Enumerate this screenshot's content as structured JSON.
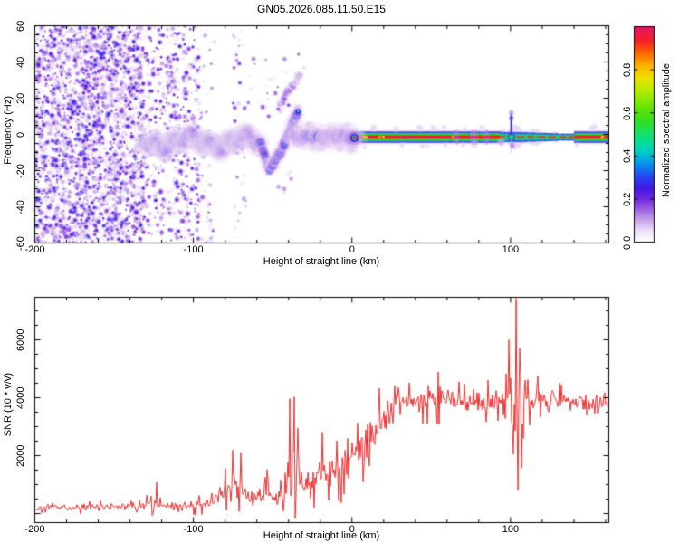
{
  "title": "GN05.2026.085.11.50.E15",
  "chart_data": [
    {
      "type": "heatmap",
      "title": "GN05.2026.085.11.50.E15",
      "xlabel": "Height of straight line (km)",
      "ylabel": "Frequency (Hz)",
      "xlim": [
        -200,
        162
      ],
      "ylim": [
        -60,
        60
      ],
      "xticks": {
        "values": [
          -200,
          -100,
          0,
          100
        ],
        "labels": [
          "-200",
          "-100",
          "0",
          "100"
        ]
      },
      "yticks": {
        "values": [
          -60,
          -40,
          -20,
          0,
          20,
          40,
          60
        ],
        "labels": [
          "-60",
          "-40",
          "-20",
          "0",
          "20",
          "40",
          "60"
        ]
      },
      "x_minor_step": 20,
      "y_minor_step": 5,
      "grid": false,
      "colorbar": {
        "label": "Normalized spectral amplitude",
        "range": [
          0,
          1
        ],
        "ticks": {
          "values": [
            0,
            0.2,
            0.4,
            0.6,
            0.8
          ],
          "labels": [
            "0.0",
            "0.2",
            "0.4",
            "0.6",
            "0.8"
          ]
        },
        "colormap": [
          [
            0,
            "#ffffff"
          ],
          [
            0.05,
            "#ecdff7"
          ],
          [
            0.1,
            "#c9a3ea"
          ],
          [
            0.15,
            "#9c5fe3"
          ],
          [
            0.2,
            "#6e28dd"
          ],
          [
            0.25,
            "#4418e6"
          ],
          [
            0.3,
            "#2743f2"
          ],
          [
            0.35,
            "#0c84f0"
          ],
          [
            0.4,
            "#00c0d8"
          ],
          [
            0.45,
            "#00dca4"
          ],
          [
            0.5,
            "#16e06a"
          ],
          [
            0.55,
            "#2cdd2c"
          ],
          [
            0.62,
            "#63e400"
          ],
          [
            0.7,
            "#b4ec00"
          ],
          [
            0.76,
            "#f0e000"
          ],
          [
            0.82,
            "#ffb000"
          ],
          [
            0.87,
            "#ff6c00"
          ],
          [
            0.93,
            "#f52222"
          ],
          [
            1,
            "#e6156e"
          ]
        ]
      },
      "features": {
        "noise_regions": [
          {
            "x": [
              -200,
              -133
            ],
            "hz": [
              -60,
              60
            ],
            "density": "high",
            "amp": [
              0.02,
              0.3
            ]
          },
          {
            "x": [
              -133,
              -96
            ],
            "hz": [
              -60,
              60
            ],
            "density": "medium",
            "amp": [
              0.02,
              0.26
            ]
          },
          {
            "x": [
              -96,
              -86
            ],
            "hz": [
              -60,
              60
            ],
            "density": "low",
            "amp": [
              0.02,
              0.18
            ]
          },
          {
            "x": [
              -76,
              -67
            ],
            "hz": [
              -58,
              58
            ],
            "density": "low",
            "amp": [
              0.02,
              0.2
            ]
          },
          {
            "x": [
              -67,
              -30
            ],
            "hz": [
              10,
              46
            ],
            "density": "sparse",
            "amp": [
              0.02,
              0.18
            ]
          },
          {
            "x": [
              -55,
              -38
            ],
            "hz": [
              -36,
              -16
            ],
            "density": "sparse",
            "amp": [
              0.02,
              0.16
            ]
          }
        ],
        "echo_band": {
          "x": [
            -134,
            -58
          ],
          "center_hz": -4,
          "wobble_hz": 5,
          "half_width_hz": 5,
          "amp": [
            0.2,
            0.8
          ]
        },
        "descent_chirp": {
          "path": [
            [
              -58,
              -5
            ],
            [
              -52,
              -19
            ],
            [
              -44,
              -8
            ],
            [
              -34,
              13
            ]
          ],
          "amp": [
            0.25,
            0.7
          ]
        },
        "upper_chirp": {
          "path": [
            [
              -47,
              14
            ],
            [
              -32,
              34
            ]
          ],
          "amp": [
            0.05,
            0.2
          ]
        },
        "carrier_line": {
          "x": [
            -35.5,
            162
          ],
          "center_hz": -1.5,
          "amp": 1.0,
          "messy_x": [
            -35.5,
            2
          ],
          "fuzzy_x": [
            94,
            140
          ],
          "hot_spots_km": [
            66,
            76,
            78,
            85
          ],
          "pinch_km": [
            -25,
            -20
          ]
        },
        "disturbance": {
          "km": 100.5,
          "up_hz": 13,
          "down_hz": -10.5
        }
      }
    },
    {
      "type": "line",
      "xlabel": "Height of straight line (km)",
      "ylabel": "SNR (10 * v/v)",
      "xlim": [
        -200,
        162
      ],
      "ylim": [
        -312,
        7470
      ],
      "xticks": {
        "values": [
          -200,
          -100,
          0,
          100
        ],
        "labels": [
          "-200",
          "-100",
          "0",
          "100"
        ]
      },
      "yticks": {
        "values": [
          2000,
          4000,
          6000
        ],
        "labels": [
          "2000",
          "4000",
          "6000"
        ]
      },
      "x_minor_step": 20,
      "y_minor_step": 500,
      "line_color": "#ee2e2e",
      "trend": [
        [
          -200,
          220,
          130
        ],
        [
          -160,
          230,
          130
        ],
        [
          -135,
          240,
          140
        ],
        [
          -126,
          330,
          220
        ],
        [
          -118,
          260,
          150
        ],
        [
          -104,
          280,
          170
        ],
        [
          -92,
          360,
          230
        ],
        [
          -84,
          550,
          350
        ],
        [
          -79,
          750,
          550
        ],
        [
          -74,
          850,
          650
        ],
        [
          -69,
          700,
          450
        ],
        [
          -62,
          520,
          330
        ],
        [
          -56,
          700,
          450
        ],
        [
          -50,
          620,
          380
        ],
        [
          -45,
          750,
          480
        ],
        [
          -41,
          1100,
          800
        ],
        [
          -38,
          1600,
          1200
        ],
        [
          -35,
          1500,
          1000
        ],
        [
          -31,
          1000,
          600
        ],
        [
          -27,
          950,
          550
        ],
        [
          -23,
          1300,
          650
        ],
        [
          -19,
          1600,
          700
        ],
        [
          -15,
          1500,
          650
        ],
        [
          -11,
          1450,
          650
        ],
        [
          -7,
          1550,
          650
        ],
        [
          -3,
          1750,
          700
        ],
        [
          1,
          2000,
          700
        ],
        [
          5,
          2150,
          700
        ],
        [
          9,
          2350,
          750
        ],
        [
          13,
          2600,
          800
        ],
        [
          17,
          2900,
          750
        ],
        [
          21,
          3200,
          700
        ],
        [
          25,
          3500,
          650
        ],
        [
          29,
          3750,
          600
        ],
        [
          33,
          3850,
          550
        ],
        [
          40,
          3950,
          520
        ],
        [
          50,
          3980,
          500
        ],
        [
          60,
          4000,
          480
        ],
        [
          70,
          3950,
          500
        ],
        [
          80,
          3900,
          520
        ],
        [
          88,
          3880,
          500
        ],
        [
          96,
          3900,
          600
        ],
        [
          101,
          4100,
          1600
        ],
        [
          104,
          4300,
          2600
        ],
        [
          107,
          3700,
          1800
        ],
        [
          111,
          3850,
          500
        ],
        [
          120,
          3880,
          450
        ],
        [
          130,
          3850,
          430
        ],
        [
          140,
          3800,
          450
        ],
        [
          150,
          3750,
          480
        ],
        [
          156,
          3820,
          460
        ],
        [
          162,
          3870,
          440
        ]
      ],
      "peaks": [
        [
          -123,
          1080
        ],
        [
          -80,
          1560
        ],
        [
          -75.5,
          2190
        ],
        [
          -70,
          2090
        ],
        [
          -53.5,
          1520
        ],
        [
          -39.2,
          3970
        ],
        [
          -36.5,
          4030
        ],
        [
          -19,
          2810
        ],
        [
          29.5,
          4350
        ],
        [
          36,
          4520
        ],
        [
          48,
          4430
        ],
        [
          71,
          4480
        ],
        [
          86,
          4600
        ],
        [
          99,
          6000
        ],
        [
          101.5,
          2050
        ],
        [
          103.6,
          7430
        ],
        [
          104.8,
          830
        ],
        [
          106.5,
          4750
        ],
        [
          108,
          2600
        ]
      ]
    }
  ]
}
